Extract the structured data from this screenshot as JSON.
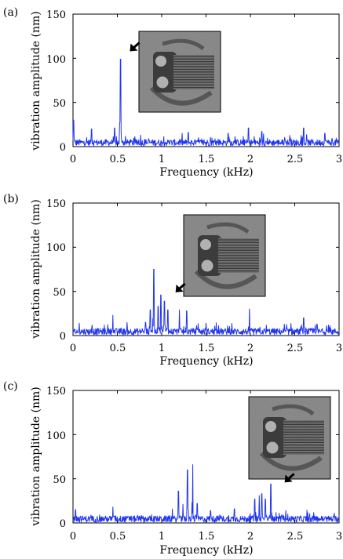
{
  "colors": {
    "signal": "#2035f0",
    "axis": "#000000",
    "inset_bg": "#8e8e8e"
  },
  "chart_data": [
    {
      "type": "line",
      "panel_label": "(a)",
      "xlabel": "Frequency (kHz)",
      "ylabel": "vibration amplitude (nm)",
      "xlim": [
        0,
        3
      ],
      "ylim": [
        0,
        150
      ],
      "xticks": [
        "0",
        "0.5",
        "1",
        "1.5",
        "2",
        "2.5",
        "3"
      ],
      "yticks": [
        "0",
        "50",
        "100",
        "150"
      ],
      "grid": false,
      "peaks": [
        {
          "x": 0.005,
          "y": 30
        },
        {
          "x": 0.21,
          "y": 20
        },
        {
          "x": 0.47,
          "y": 21
        },
        {
          "x": 0.535,
          "y": 99
        },
        {
          "x": 1.3,
          "y": 16
        },
        {
          "x": 1.75,
          "y": 15
        },
        {
          "x": 1.98,
          "y": 21
        },
        {
          "x": 2.13,
          "y": 17
        },
        {
          "x": 2.6,
          "y": 21
        },
        {
          "x": 2.84,
          "y": 15
        }
      ],
      "noise_floor": 6,
      "annotation": {
        "type": "arrow",
        "target_x": 0.535,
        "target_y": 99
      }
    },
    {
      "type": "line",
      "panel_label": "(b)",
      "xlabel": "Frequency (kHz)",
      "ylabel": "vibration amplitude (nm)",
      "xlim": [
        0,
        3
      ],
      "ylim": [
        0,
        150
      ],
      "xticks": [
        "0",
        "0.5",
        "1",
        "1.5",
        "2",
        "2.5",
        "3"
      ],
      "yticks": [
        "0",
        "50",
        "100",
        "150"
      ],
      "grid": false,
      "peaks": [
        {
          "x": 0.45,
          "y": 23
        },
        {
          "x": 0.82,
          "y": 15
        },
        {
          "x": 0.87,
          "y": 29
        },
        {
          "x": 0.91,
          "y": 75
        },
        {
          "x": 0.96,
          "y": 33
        },
        {
          "x": 0.99,
          "y": 46
        },
        {
          "x": 1.03,
          "y": 39
        },
        {
          "x": 1.07,
          "y": 29
        },
        {
          "x": 1.2,
          "y": 29
        },
        {
          "x": 1.28,
          "y": 28
        },
        {
          "x": 1.5,
          "y": 14
        },
        {
          "x": 1.99,
          "y": 30
        },
        {
          "x": 2.6,
          "y": 20
        },
        {
          "x": 2.75,
          "y": 13
        }
      ],
      "noise_floor": 6,
      "annotation": {
        "type": "arrow",
        "target_x": 1.05,
        "target_y": 40
      }
    },
    {
      "type": "line",
      "panel_label": "(c)",
      "xlabel": "Frequency (kHz)",
      "ylabel": "vibration amplitude (nm)",
      "xlim": [
        0,
        3
      ],
      "ylim": [
        0,
        150
      ],
      "xticks": [
        "0",
        "0.5",
        "1",
        "1.5",
        "2",
        "2.5",
        "3"
      ],
      "yticks": [
        "0",
        "50",
        "100",
        "150"
      ],
      "grid": false,
      "peaks": [
        {
          "x": 0.03,
          "y": 15
        },
        {
          "x": 0.45,
          "y": 18
        },
        {
          "x": 1.19,
          "y": 36
        },
        {
          "x": 1.24,
          "y": 21
        },
        {
          "x": 1.29,
          "y": 60
        },
        {
          "x": 1.35,
          "y": 66
        },
        {
          "x": 1.4,
          "y": 22
        },
        {
          "x": 1.55,
          "y": 14
        },
        {
          "x": 1.82,
          "y": 16
        },
        {
          "x": 2.05,
          "y": 27
        },
        {
          "x": 2.1,
          "y": 31
        },
        {
          "x": 2.13,
          "y": 33
        },
        {
          "x": 2.17,
          "y": 27
        },
        {
          "x": 2.23,
          "y": 44
        },
        {
          "x": 2.4,
          "y": 14
        }
      ],
      "noise_floor": 6,
      "annotation": {
        "type": "arrow",
        "target_x": 2.28,
        "target_y": 37
      }
    }
  ]
}
